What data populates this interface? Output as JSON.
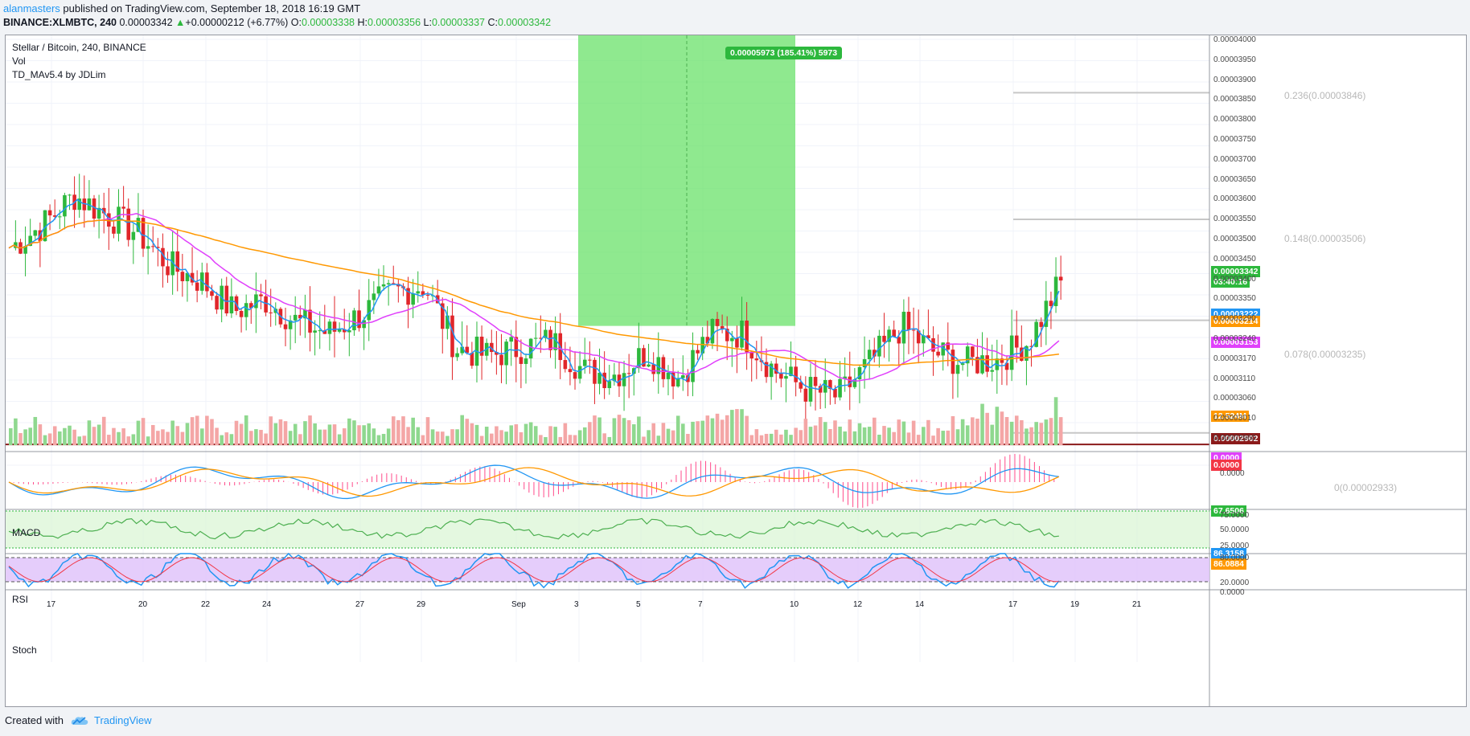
{
  "header": {
    "user": "alanmasters",
    "published_text": " published on TradingView.com, September 18, 2018 16:19 GMT",
    "symbol_line": "BINANCE:XLMBTC, 240",
    "last": "0.00003342",
    "change": "+0.00000212 (+6.77%)",
    "o_label": "O:",
    "o_val": "0.00003338",
    "h_label": "H:",
    "h_val": "0.00003356",
    "l_label": "L:",
    "l_val": "0.00003337",
    "c_label": "C:",
    "c_val": "0.00003342"
  },
  "legend": {
    "title": "Stellar / Bitcoin, 240, BINANCE",
    "vol": "Vol",
    "td": "TD_MAv5.4 by JDLim",
    "macd": "MACD",
    "rsi": "RSI",
    "stoch": "Stoch"
  },
  "measure_label": "0.00005973 (185.41%) 5973",
  "fib_labels": [
    {
      "text": "0.236(0.00003846)"
    },
    {
      "text": "0.148(0.00003506)"
    },
    {
      "text": "0.078(0.00003235)"
    },
    {
      "text": "0(0.00002933)"
    }
  ],
  "price_labels": [
    {
      "text": "0.00003342",
      "color": "#2db83d"
    },
    {
      "text": "03:40:16",
      "color": "#2db83d"
    },
    {
      "text": "0.00003222",
      "color": "#2196f3"
    },
    {
      "text": "0.00003214",
      "color": "#ff9800"
    },
    {
      "text": "0.00003153",
      "color": "#e040fb"
    },
    {
      "text": "12.524M",
      "color": "#ff9800"
    },
    {
      "text": "0.00002902",
      "color": "#8b1a1a"
    },
    {
      "text": "0.0000",
      "color": "#e040fb"
    },
    {
      "text": "0.0000",
      "color": "#f23645"
    },
    {
      "text": "67.6506",
      "color": "#2db83d"
    },
    {
      "text": "86.3158",
      "color": "#2196f3"
    },
    {
      "text": "86.0884",
      "color": "#ff9800"
    }
  ],
  "price_axis_ticks": [
    "0.00004000",
    "0.00003950",
    "0.00003900",
    "0.00003850",
    "0.00003800",
    "0.00003750",
    "0.00003700",
    "0.00003650",
    "0.00003600",
    "0.00003550",
    "0.00003500",
    "0.00003450",
    "0.00003400",
    "0.00003350",
    "0.00003290",
    "0.00003240",
    "0.00003170",
    "0.00003110",
    "0.00003060",
    "0.00003010",
    "0.00002960"
  ],
  "macd_axis_ticks": [
    "0.0000"
  ],
  "rsi_axis_ticks": [
    "75.0000",
    "50.0000",
    "25.0000"
  ],
  "stoch_axis_ticks": [
    "80.0000",
    "20.0000",
    "0.0000"
  ],
  "x_labels": [
    "17",
    "20",
    "22",
    "24",
    "27",
    "29",
    "Sep",
    "3",
    "5",
    "7",
    "10",
    "12",
    "14",
    "17",
    "19",
    "21"
  ],
  "footer": {
    "created_with": "Created with",
    "brand": "TradingView"
  },
  "chart_data": {
    "type": "candlestick",
    "title": "Stellar / Bitcoin, 240, BINANCE",
    "symbol": "BINANCE:XLMBTC",
    "interval": "240",
    "x_ticks": [
      "17",
      "20",
      "22",
      "24",
      "27",
      "29",
      "Sep",
      "3",
      "5",
      "7",
      "10",
      "12",
      "14",
      "17",
      "19",
      "21"
    ],
    "ylim": [
      2.9e-05,
      4e-05
    ],
    "close_path_approx": [
      {
        "x": "Aug 16",
        "close": 3.43e-05
      },
      {
        "x": "Aug 17",
        "close": 3.49e-05
      },
      {
        "x": "Aug 18",
        "close": 3.57e-05
      },
      {
        "x": "Aug 19",
        "close": 3.52e-05
      },
      {
        "x": "Aug 20",
        "close": 3.47e-05
      },
      {
        "x": "Aug 21",
        "close": 3.38e-05
      },
      {
        "x": "Aug 22",
        "close": 3.34e-05
      },
      {
        "x": "Aug 23",
        "close": 3.26e-05
      },
      {
        "x": "Aug 24",
        "close": 3.29e-05
      },
      {
        "x": "Aug 25",
        "close": 3.23e-05
      },
      {
        "x": "Aug 26",
        "close": 3.2e-05
      },
      {
        "x": "Aug 27",
        "close": 3.25e-05
      },
      {
        "x": "Aug 28",
        "close": 3.31e-05
      },
      {
        "x": "Aug 29",
        "close": 3.33e-05
      },
      {
        "x": "Aug 30",
        "close": 3.16e-05
      },
      {
        "x": "Aug 31",
        "close": 3.14e-05
      },
      {
        "x": "Sep 1",
        "close": 3.16e-05
      },
      {
        "x": "Sep 2",
        "close": 3.18e-05
      },
      {
        "x": "Sep 3",
        "close": 3.1e-05
      },
      {
        "x": "Sep 4",
        "close": 3.09e-05
      },
      {
        "x": "Sep 5",
        "close": 3.15e-05
      },
      {
        "x": "Sep 6",
        "close": 3.08e-05
      },
      {
        "x": "Sep 7",
        "close": 3.2e-05
      },
      {
        "x": "Sep 8",
        "close": 3.2e-05
      },
      {
        "x": "Sep 9",
        "close": 3.1e-05
      },
      {
        "x": "Sep 10",
        "close": 3.05e-05
      },
      {
        "x": "Sep 11",
        "close": 3.03e-05
      },
      {
        "x": "Sep 12",
        "close": 3.12e-05
      },
      {
        "x": "Sep 13",
        "close": 3.22e-05
      },
      {
        "x": "Sep 14",
        "close": 3.15e-05
      },
      {
        "x": "Sep 15",
        "close": 3.12e-05
      },
      {
        "x": "Sep 16",
        "close": 3.13e-05
      },
      {
        "x": "Sep 17",
        "close": 3.18e-05
      },
      {
        "x": "Sep 18",
        "close": 3.34e-05
      }
    ],
    "moving_averages": [
      {
        "name": "fast (blue)",
        "color": "#2196f3",
        "last": 3.222e-05
      },
      {
        "name": "slow (orange)",
        "color": "#ff9800",
        "last": 3.214e-05
      },
      {
        "name": "mid (magenta)",
        "color": "#e040fb",
        "last": 3.153e-05
      }
    ],
    "horizontal_line": {
      "value": 2.902e-05,
      "color": "#8b1a1a"
    },
    "fibonacci_levels": [
      {
        "ratio": 0.236,
        "value": 3.846e-05
      },
      {
        "ratio": 0.148,
        "value": 3.506e-05
      },
      {
        "ratio": 0.078,
        "value": 3.235e-05
      },
      {
        "ratio": 0,
        "value": 2.933e-05
      }
    ],
    "measure_box": {
      "from_x": "Sep 3",
      "to_x": "Sep 10",
      "low": 3.22e-05,
      "high": 4e-05,
      "label": "0.00005973 (185.41%) 5973"
    },
    "volume_ma_last": "12.524M",
    "indicators": {
      "macd": {
        "last": "0.0000"
      },
      "rsi": {
        "last": 67.6506,
        "bands": [
          75,
          50,
          25
        ]
      },
      "stoch": {
        "k": 86.3158,
        "d": 86.0884,
        "bands": [
          80,
          20
        ]
      }
    }
  }
}
